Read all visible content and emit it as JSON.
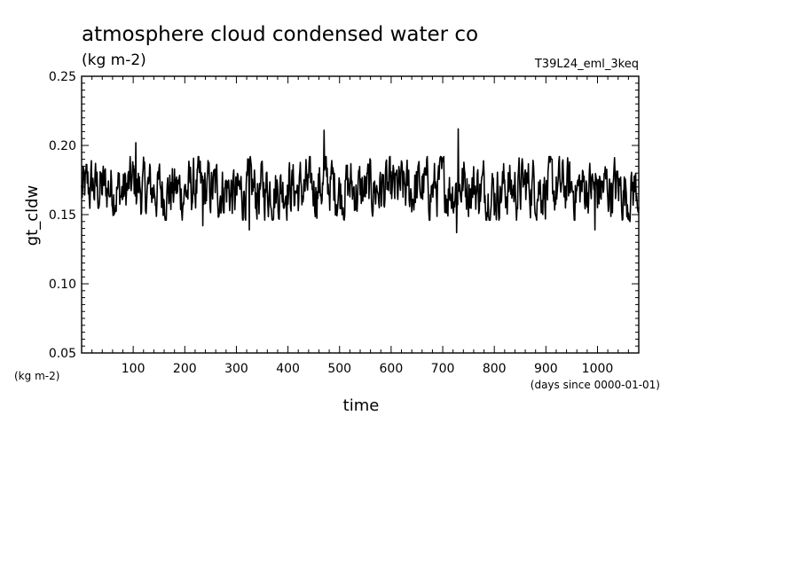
{
  "chart_data": {
    "type": "line",
    "title": "atmosphere cloud condensed water co",
    "subtitle": "(kg m-2)",
    "run_label": "T39L24_eml_3keq",
    "xlabel": "time",
    "x_units": "(days since 0000-01-01)",
    "ylabel": "gt_cldw",
    "y_units": "(kg m-2)",
    "xlim": [
      0,
      1080
    ],
    "ylim": [
      0.05,
      0.25
    ],
    "x_ticks": [
      100,
      200,
      300,
      400,
      500,
      600,
      700,
      800,
      900,
      1000
    ],
    "y_ticks": [
      0.05,
      0.1,
      0.15,
      0.2,
      0.25
    ],
    "y_tick_labels": [
      "0.05",
      "0.10",
      "0.15",
      "0.20",
      "0.25"
    ],
    "grid": false,
    "series": [
      {
        "x": [
          0,
          20,
          40,
          60,
          80,
          100,
          120,
          140,
          160,
          180,
          200,
          220,
          240,
          260,
          280,
          300,
          320,
          340,
          360,
          380,
          400,
          420,
          440,
          460,
          480,
          500,
          520,
          540,
          560,
          580,
          600,
          620,
          640,
          660,
          680,
          700,
          720,
          740,
          760,
          780,
          800,
          820,
          840,
          860,
          880,
          900,
          920,
          940,
          960,
          980,
          1000,
          1020,
          1040,
          1060,
          1080
        ],
        "values": [
          0.166,
          0.17,
          0.168,
          0.171,
          0.165,
          0.173,
          0.166,
          0.169,
          0.167,
          0.168,
          0.166,
          0.17,
          0.167,
          0.168,
          0.17,
          0.162,
          0.169,
          0.166,
          0.17,
          0.168,
          0.172,
          0.167,
          0.169,
          0.171,
          0.173,
          0.168,
          0.17,
          0.166,
          0.168,
          0.169,
          0.166,
          0.168,
          0.167,
          0.17,
          0.168,
          0.171,
          0.169,
          0.173,
          0.17,
          0.168,
          0.166,
          0.17,
          0.168,
          0.171,
          0.172,
          0.169,
          0.168,
          0.17,
          0.167,
          0.171,
          0.168,
          0.17,
          0.169,
          0.166,
          0.17
        ],
        "notable_points": [
          {
            "x": 105,
            "y": 0.202
          },
          {
            "x": 235,
            "y": 0.142
          },
          {
            "x": 325,
            "y": 0.139
          },
          {
            "x": 470,
            "y": 0.211
          },
          {
            "x": 727,
            "y": 0.137
          },
          {
            "x": 730,
            "y": 0.212
          },
          {
            "x": 995,
            "y": 0.139
          },
          {
            "x": 1063,
            "y": 0.145
          }
        ]
      }
    ]
  }
}
